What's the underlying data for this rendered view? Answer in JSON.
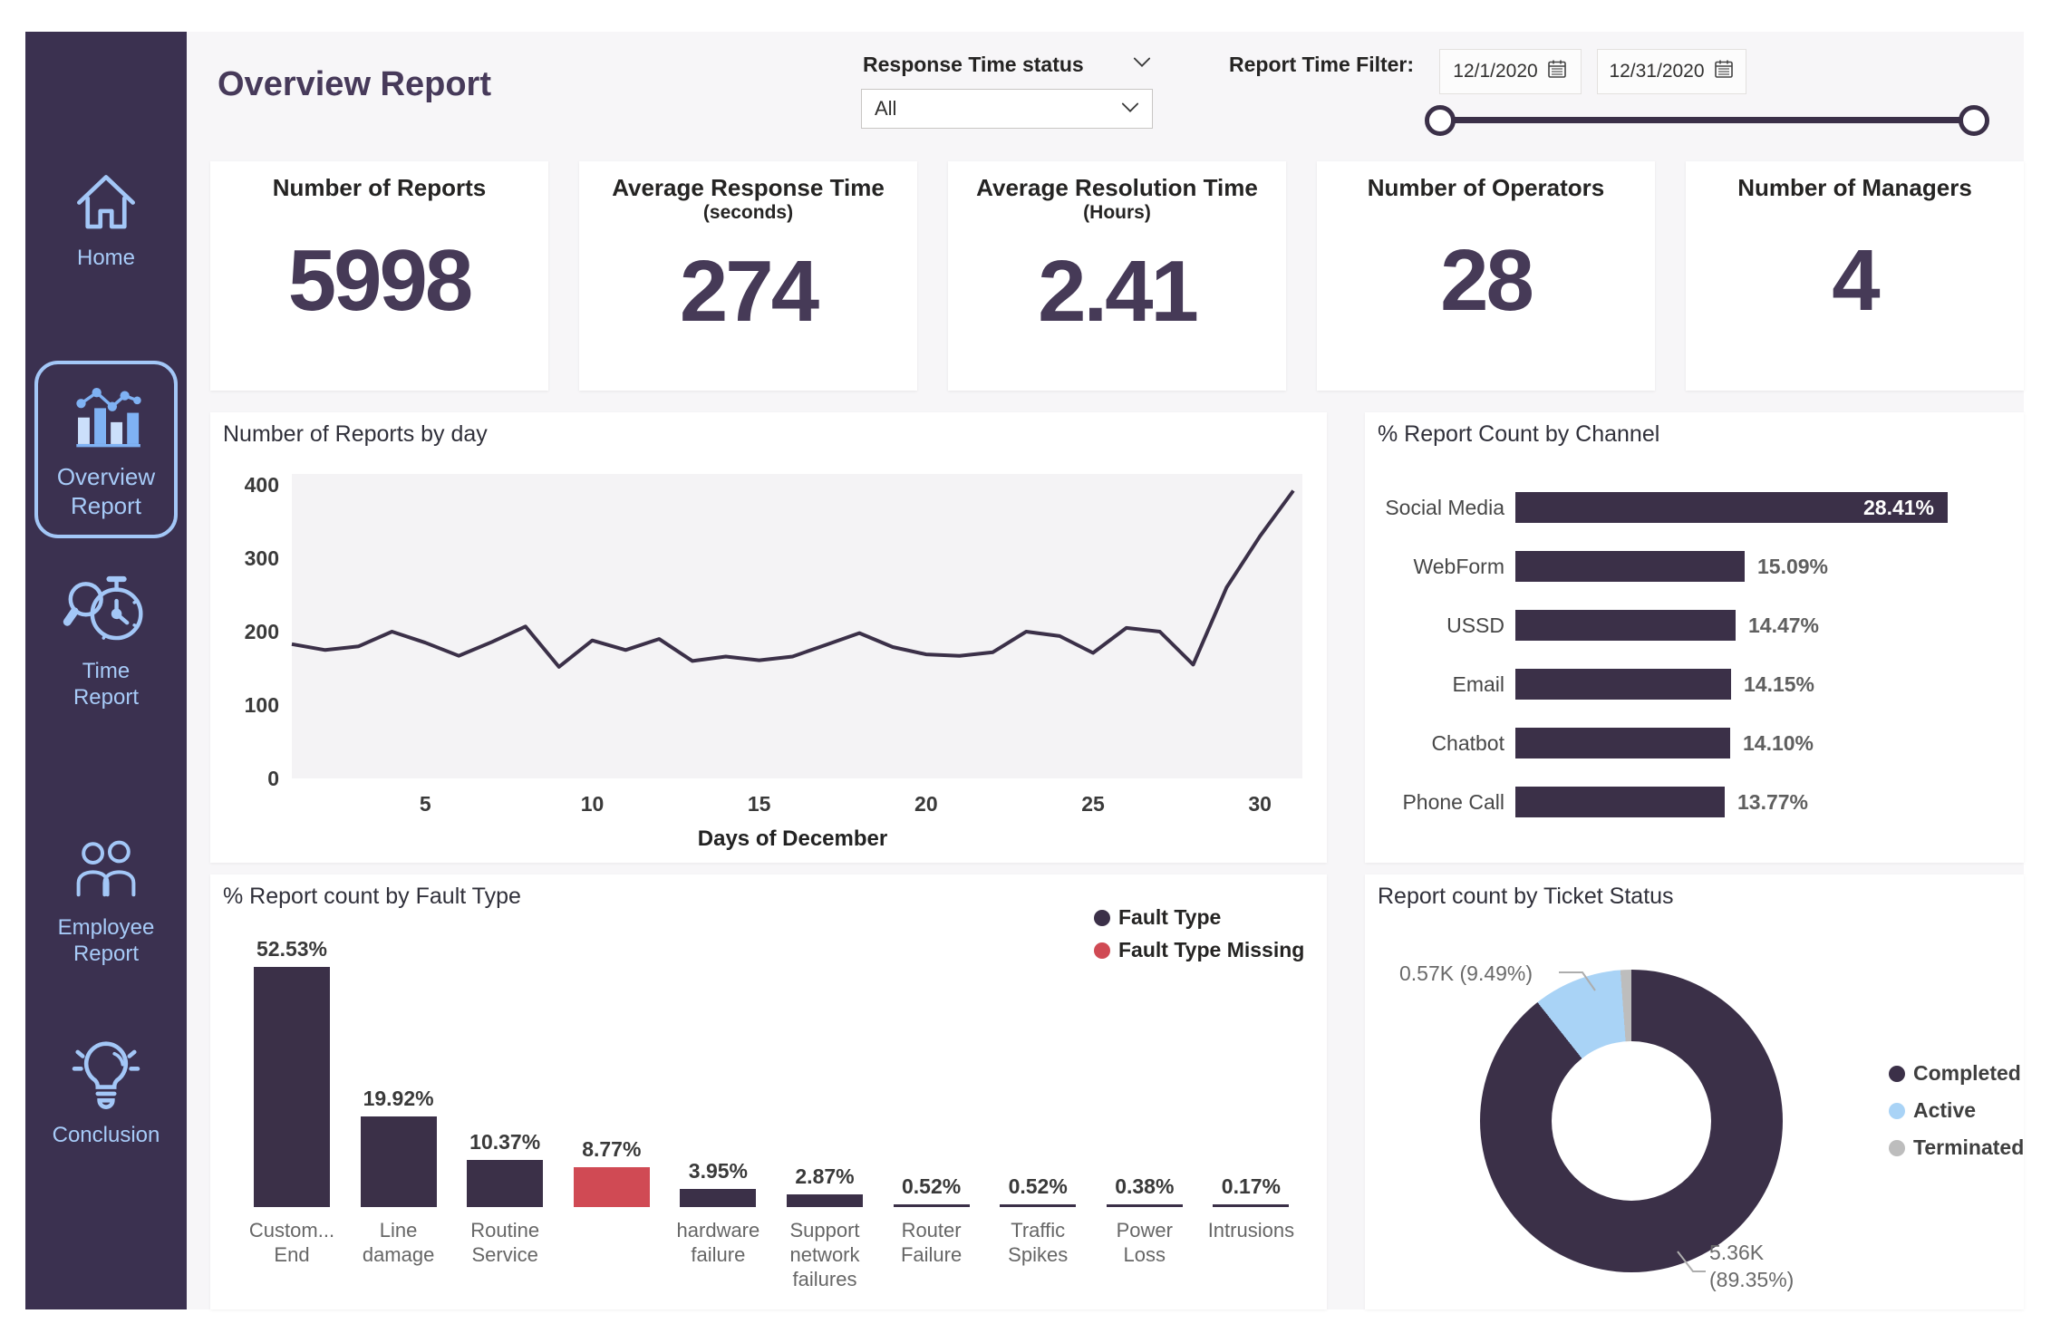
{
  "header": {
    "title": "Overview Report",
    "slicer": {
      "label": "Response Time status",
      "value": "All",
      "icon": "chevron-down-icon"
    },
    "time_filter": {
      "label": "Report Time Filter:",
      "start": "12/1/2020",
      "end": "12/31/2020",
      "icon": "calendar-icon"
    }
  },
  "sidebar": {
    "items": [
      {
        "label": "Home",
        "icon": "home-icon",
        "active": false
      },
      {
        "label": "Overview Report",
        "icon": "overview-report-icon",
        "active": true
      },
      {
        "label": "Time Report",
        "icon": "time-report-icon",
        "active": false
      },
      {
        "label": "Employee Report",
        "icon": "employee-report-icon",
        "active": false
      },
      {
        "label": "Conclusion",
        "icon": "conclusion-icon",
        "active": false
      }
    ]
  },
  "kpis": [
    {
      "title": "Number of Reports",
      "subtitle": "",
      "value": "5998"
    },
    {
      "title": "Average Response Time",
      "subtitle": "(seconds)",
      "value": "274"
    },
    {
      "title": "Average Resolution Time",
      "subtitle": "(Hours)",
      "value": "2.41"
    },
    {
      "title": "Number of Operators",
      "subtitle": "",
      "value": "28"
    },
    {
      "title": "Number of Managers",
      "subtitle": "",
      "value": "4"
    }
  ],
  "chart_data": [
    {
      "id": "reports_by_day",
      "type": "line",
      "title": "Number of Reports by day",
      "xlabel": "Days of December",
      "x": [
        1,
        2,
        3,
        4,
        5,
        6,
        7,
        8,
        9,
        10,
        11,
        12,
        13,
        14,
        15,
        16,
        17,
        18,
        19,
        20,
        21,
        22,
        23,
        24,
        25,
        26,
        27,
        28,
        29,
        30,
        31
      ],
      "values": [
        183,
        175,
        180,
        200,
        185,
        167,
        186,
        207,
        152,
        188,
        175,
        190,
        160,
        166,
        161,
        166,
        182,
        198,
        179,
        169,
        167,
        172,
        200,
        194,
        171,
        205,
        200,
        155,
        260,
        330,
        392
      ],
      "ylim": [
        0,
        400
      ],
      "yticks": [
        0,
        100,
        200,
        300,
        400
      ],
      "xticks": [
        5,
        10,
        15,
        20,
        25,
        30
      ],
      "line_color": "#3B3048",
      "plot_bg": "#F4F3F5"
    },
    {
      "id": "report_count_by_channel",
      "type": "bar",
      "orientation": "horizontal",
      "title": "% Report Count by Channel",
      "categories": [
        "Social Media",
        "WebForm",
        "USSD",
        "Email",
        "Chatbot",
        "Phone Call"
      ],
      "values": [
        28.41,
        15.09,
        14.47,
        14.15,
        14.1,
        13.77
      ],
      "labels": [
        "28.41%",
        "15.09%",
        "14.47%",
        "14.15%",
        "14.10%",
        "13.77%"
      ],
      "bar_color": "#3B3048"
    },
    {
      "id": "report_count_by_fault_type",
      "type": "bar",
      "orientation": "vertical",
      "title": "% Report count by Fault Type",
      "categories": [
        "Custom...\nEnd",
        "Line\ndamage",
        "Routine\nService",
        "",
        "hardware\nfailure",
        "Support\nnetwork\nfailures",
        "Router\nFailure",
        "Traffic\nSpikes",
        "Power\nLoss",
        "Intrusions"
      ],
      "values": [
        52.53,
        19.92,
        10.37,
        8.77,
        3.95,
        2.87,
        0.52,
        0.52,
        0.38,
        0.17
      ],
      "labels": [
        "52.53%",
        "19.92%",
        "10.37%",
        "8.77%",
        "3.95%",
        "2.87%",
        "0.52%",
        "0.52%",
        "0.38%",
        "0.17%"
      ],
      "missing_index": 3,
      "legend": [
        {
          "label": "Fault Type",
          "color": "#3B3048"
        },
        {
          "label": "Fault Type Missing",
          "color": "#D04A54"
        }
      ]
    },
    {
      "id": "report_count_by_ticket_status",
      "type": "donut",
      "title": "Report count by Ticket Status",
      "categories": [
        "Completed",
        "Active",
        "Terminated"
      ],
      "values": [
        89.35,
        9.49,
        1.16
      ],
      "colors": [
        "#3B3048",
        "#A9D3F6",
        "#BDBDBD"
      ],
      "callouts": {
        "active": "0.57K (9.49%)",
        "completed": [
          "5.36K",
          "(89.35%)"
        ]
      },
      "legend_position": "right"
    }
  ],
  "colors": {
    "sidebar_bg": "#3B3150",
    "accent_blue": "#A3C7F7",
    "primary_dark": "#3B3048",
    "missing_red": "#D04A54",
    "active_blue": "#A9D3F6",
    "terminated_gray": "#BDBDBD",
    "page_bg": "#F7F6F8",
    "title_purple": "#473A5A"
  }
}
